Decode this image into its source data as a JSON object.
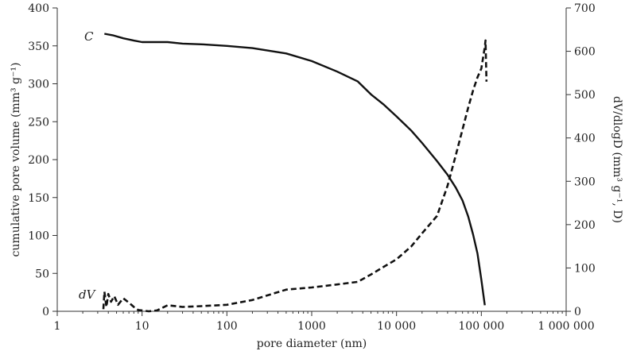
{
  "chart_data": {
    "type": "line",
    "xlabel": "pore diameter (nm)",
    "xscale": "log",
    "xlim": [
      1,
      1000000
    ],
    "xticks": [
      1,
      10,
      100,
      1000,
      10000,
      100000,
      1000000
    ],
    "xtick_labels": [
      "1",
      "10",
      "100",
      "1000",
      "10 000",
      "100 000",
      "1 000 000"
    ],
    "ylabel_left": "cumulative pore volume (mm³ g⁻¹)",
    "ylim_left": [
      0,
      400
    ],
    "yticks_left": [
      0,
      50,
      100,
      150,
      200,
      250,
      300,
      350,
      400
    ],
    "ylabel_right": "dV/dlogD (mm³ g⁻¹, D)",
    "ylim_right": [
      0,
      700
    ],
    "yticks_right": [
      0,
      100,
      200,
      300,
      400,
      500,
      600,
      700
    ],
    "grid": false,
    "series": [
      {
        "name": "C",
        "axis": "left",
        "style": "solid",
        "color": "#111111",
        "x": [
          3.6,
          4.5,
          6,
          8,
          10,
          20,
          30,
          50,
          100,
          200,
          500,
          1000,
          2000,
          3500,
          5000,
          7000,
          10000,
          15000,
          20000,
          30000,
          40000,
          50000,
          60000,
          70000,
          80000,
          90000,
          100000,
          110000
        ],
        "y": [
          366,
          364,
          360,
          357,
          355,
          355,
          353,
          352,
          350,
          347,
          340,
          330,
          316,
          303,
          286,
          273,
          257,
          238,
          222,
          198,
          180,
          163,
          146,
          125,
          101,
          76,
          42,
          8
        ]
      },
      {
        "name": "dV",
        "axis": "right",
        "style": "dashed",
        "color": "#111111",
        "x": [
          3.5,
          3.6,
          3.8,
          4.0,
          4.3,
          4.7,
          5.2,
          6,
          7,
          8,
          9,
          10,
          12,
          15,
          20,
          30,
          50,
          100,
          200,
          500,
          1000,
          2000,
          3500,
          5000,
          7000,
          10000,
          15000,
          20000,
          30000,
          40000,
          50000,
          60000,
          70000,
          80000,
          90000,
          100000,
          110000,
          112000,
          115000
        ],
        "y": [
          5,
          45,
          10,
          40,
          22,
          35,
          15,
          30,
          20,
          10,
          3,
          2,
          0,
          2,
          14,
          10,
          12,
          15,
          26,
          50,
          55,
          62,
          68,
          85,
          102,
          120,
          150,
          180,
          220,
          290,
          360,
          420,
          470,
          510,
          540,
          560,
          610,
          625,
          530
        ]
      }
    ]
  }
}
